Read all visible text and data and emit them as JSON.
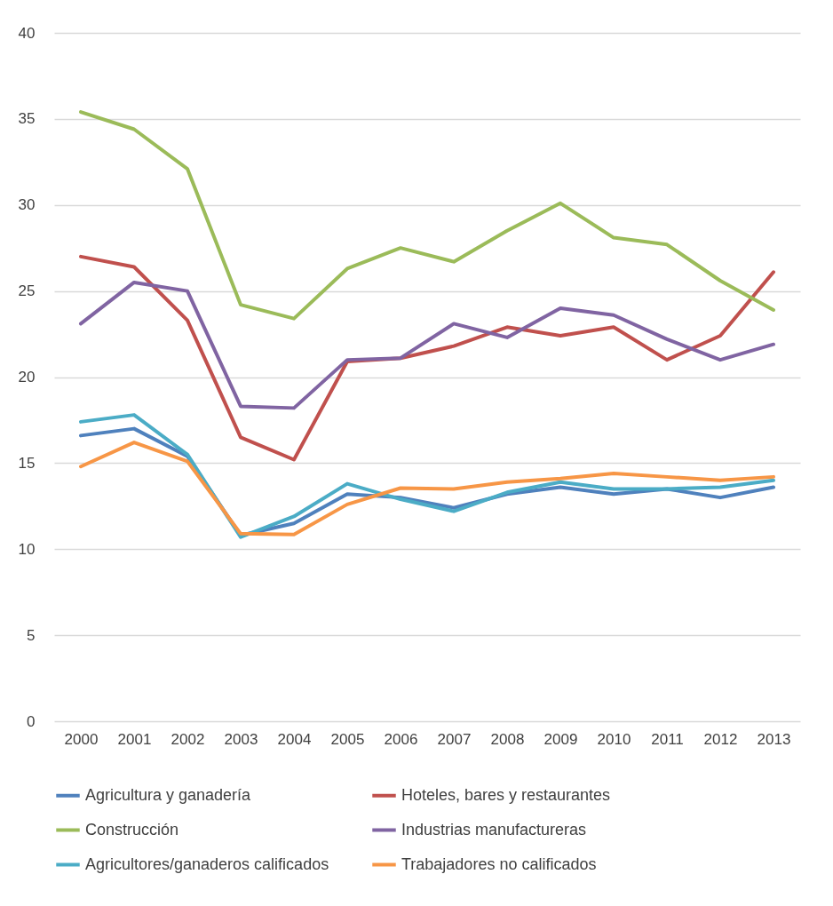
{
  "chart_data": {
    "type": "line",
    "categories": [
      "2000",
      "2001",
      "2002",
      "2003",
      "2004",
      "2005",
      "2006",
      "2007",
      "2008",
      "2009",
      "2010",
      "2011",
      "2012",
      "2013"
    ],
    "ylim": [
      0,
      40
    ],
    "yticks": [
      0,
      5,
      10,
      15,
      20,
      25,
      30,
      35,
      40
    ],
    "grid": "y",
    "legend": "bottom",
    "series": [
      {
        "name": "Agricultura y ganadería",
        "color": "#4f81bd",
        "values": [
          16.6,
          17.0,
          15.4,
          10.8,
          11.5,
          13.2,
          13.0,
          12.4,
          13.2,
          13.6,
          13.2,
          13.5,
          13.0,
          13.6
        ]
      },
      {
        "name": "Hoteles, bares y restaurantes",
        "color": "#c0504d",
        "values": [
          27.0,
          26.4,
          23.3,
          16.5,
          15.2,
          20.9,
          21.1,
          21.8,
          22.9,
          22.4,
          22.9,
          21.0,
          22.4,
          26.1
        ]
      },
      {
        "name": "Construcción",
        "color": "#9bbb59",
        "values": [
          35.4,
          34.4,
          32.1,
          24.2,
          23.4,
          26.3,
          27.5,
          26.7,
          28.5,
          30.1,
          28.1,
          27.7,
          25.6,
          23.9
        ]
      },
      {
        "name": "Industrias manufactureras",
        "color": "#8064a2",
        "values": [
          23.1,
          25.5,
          25.0,
          18.3,
          18.2,
          21.0,
          21.1,
          23.1,
          22.3,
          24.0,
          23.6,
          22.2,
          21.0,
          21.9
        ]
      },
      {
        "name": "Agricultores/ganaderos calificados",
        "color": "#4bacc6",
        "values": [
          17.4,
          17.8,
          15.5,
          10.7,
          11.9,
          13.8,
          12.9,
          12.2,
          13.3,
          13.9,
          13.5,
          13.5,
          13.6,
          14.0
        ]
      },
      {
        "name": "Trabajadores no calificados",
        "color": "#f79646",
        "values": [
          14.8,
          16.2,
          15.1,
          10.9,
          10.85,
          12.6,
          13.55,
          13.5,
          13.9,
          14.1,
          14.4,
          14.2,
          14.0,
          14.2
        ]
      }
    ]
  }
}
